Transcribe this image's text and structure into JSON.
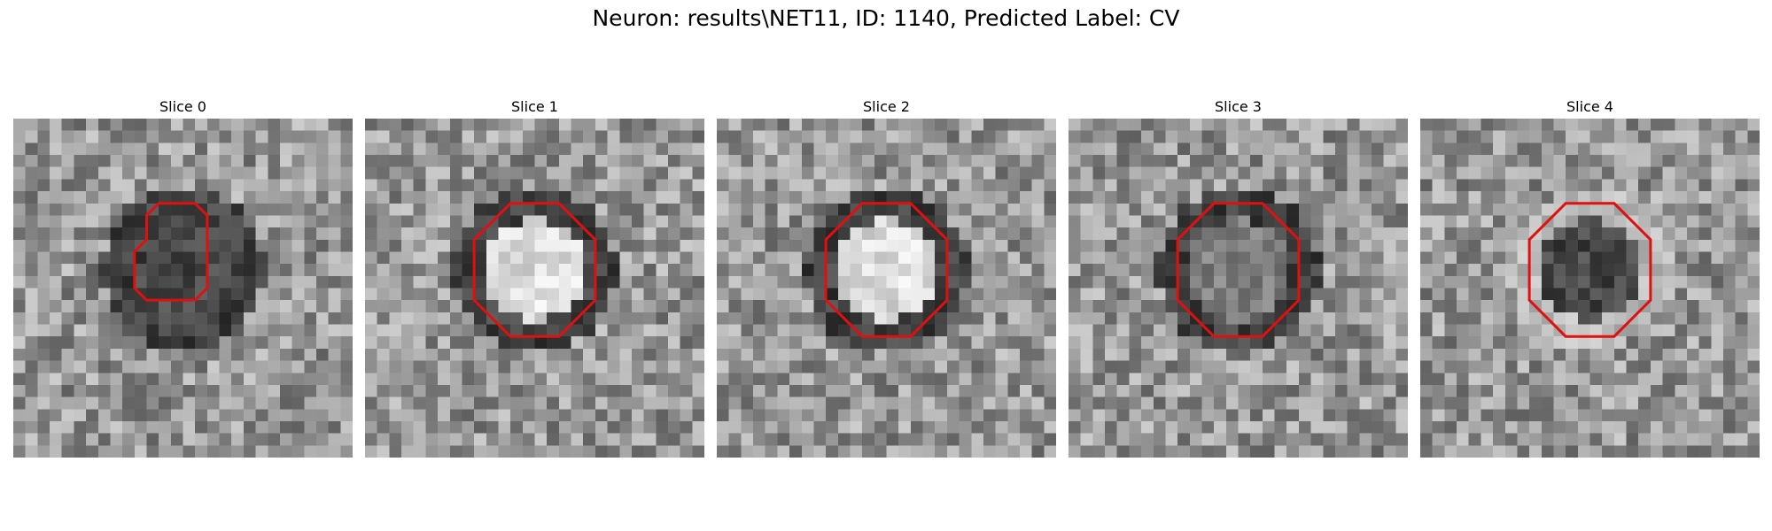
{
  "figure": {
    "title": "Neuron: results\\NET11, ID: 1140, Predicted Label: CV"
  },
  "slices": [
    {
      "title": "Slice 0",
      "outline_color": "#e01010",
      "center_brightness": "dark",
      "ring": "dark"
    },
    {
      "title": "Slice 1",
      "outline_color": "#e01010",
      "center_brightness": "bright",
      "ring": "dark"
    },
    {
      "title": "Slice 2",
      "outline_color": "#e01010",
      "center_brightness": "bright",
      "ring": "dark"
    },
    {
      "title": "Slice 3",
      "outline_color": "#e01010",
      "center_brightness": "medium",
      "ring": "dark"
    },
    {
      "title": "Slice 4",
      "outline_color": "#e01010",
      "center_brightness": "dark",
      "ring": "light"
    }
  ]
}
